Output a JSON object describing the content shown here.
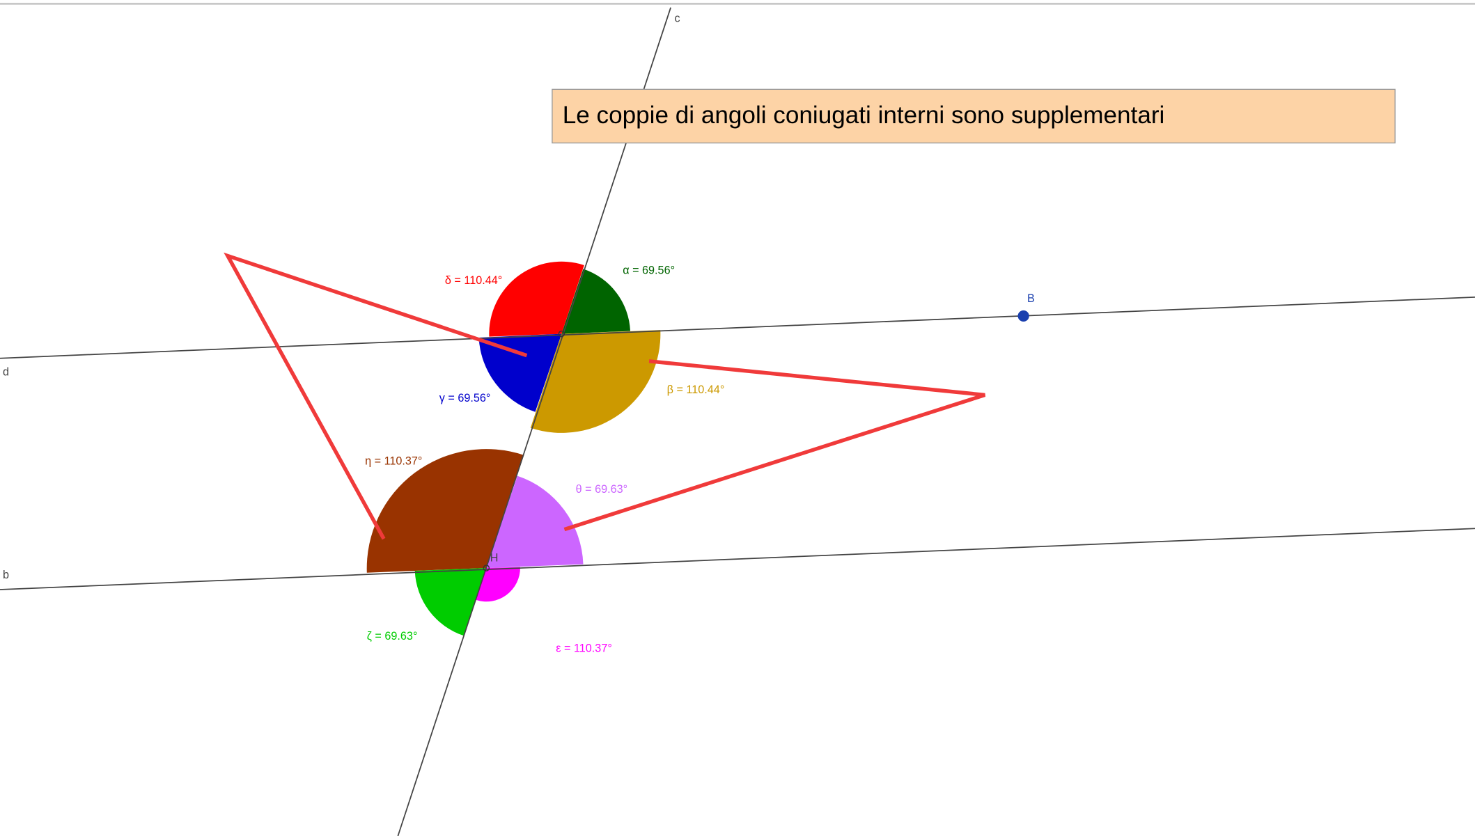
{
  "textbox": "Le coppie di angoli coniugati interni sono supplementari",
  "lines": {
    "c": "c",
    "d": "d",
    "b": "b"
  },
  "points": {
    "B": "B",
    "H": "H"
  },
  "angles": {
    "alpha": "α = 69.56°",
    "beta": "β = 110.44°",
    "gamma": "γ = 69.56°",
    "delta": "δ = 110.44°",
    "eta": "η = 110.37°",
    "theta": "θ = 69.63°",
    "zeta": "ζ = 69.63°",
    "epsilon": "ε = 110.37°"
  }
}
